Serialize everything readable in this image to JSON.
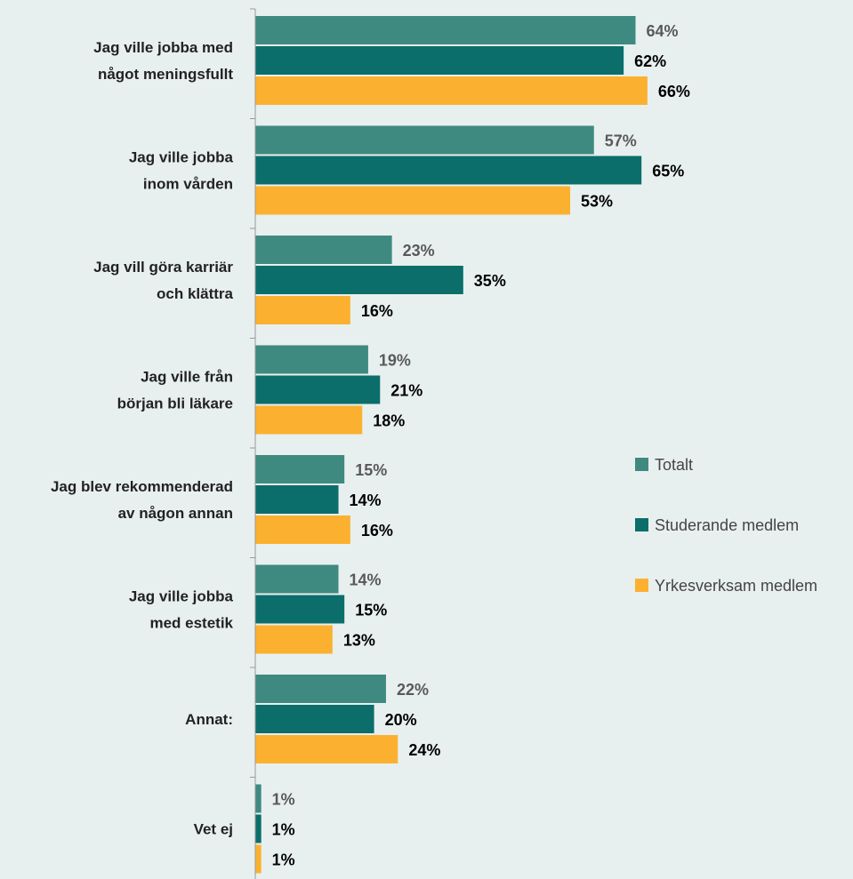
{
  "chart_data": {
    "type": "bar",
    "orientation": "horizontal",
    "categories": [
      [
        "Jag ville jobba med",
        "något meningsfullt"
      ],
      [
        "Jag ville jobba",
        "inom vården"
      ],
      [
        "Jag vill göra karriär",
        "och klättra"
      ],
      [
        "Jag ville från",
        "början bli läkare"
      ],
      [
        "Jag blev rekommenderad",
        "av någon annan"
      ],
      [
        "Jag ville jobba",
        "med estetik"
      ],
      [
        "Annat:"
      ],
      [
        "Vet ej"
      ]
    ],
    "series": [
      {
        "name": "Totalt",
        "color": "#3f8a80",
        "label_color": "#595959",
        "values": [
          64,
          57,
          23,
          19,
          15,
          14,
          22,
          1
        ],
        "labels": [
          "64%",
          "57%",
          "23%",
          "19%",
          "15%",
          "14%",
          "22%",
          "1%"
        ]
      },
      {
        "name": "Studerande medlem",
        "color": "#0b6e6b",
        "label_color": "#000000",
        "values": [
          62,
          65,
          35,
          21,
          14,
          15,
          20,
          1
        ],
        "labels": [
          "62%",
          "65%",
          "35%",
          "21%",
          "14%",
          "15%",
          "20%",
          "1%"
        ]
      },
      {
        "name": "Yrkesverksam medlem",
        "color": "#fbb12f",
        "label_color": "#000000",
        "values": [
          66,
          53,
          16,
          18,
          16,
          13,
          24,
          1
        ],
        "labels": [
          "66%",
          "53%",
          "16%",
          "18%",
          "16%",
          "13%",
          "24%",
          "1%"
        ]
      }
    ],
    "xlim": [
      0,
      100
    ],
    "grid": false,
    "legend": "right",
    "axis_color": "#999999"
  }
}
